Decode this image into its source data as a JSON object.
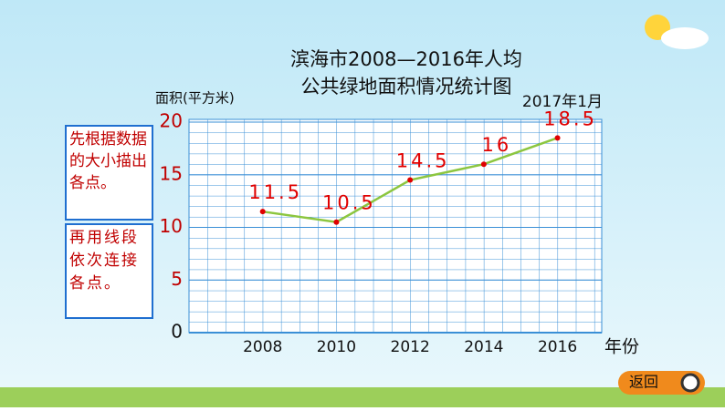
{
  "chart_data": {
    "type": "line",
    "title": [
      "滨海市2008—2016年人均",
      "公共绿地面积情况统计图"
    ],
    "date_note": "2017年1月",
    "y_label": "面积(平方米)",
    "x_label": "年份",
    "x": [
      2008,
      2010,
      2012,
      2014,
      2016
    ],
    "series": [
      {
        "color": "#8cc63f",
        "values": [
          11.5,
          10.5,
          14.5,
          16,
          18.5
        ]
      }
    ],
    "xlim": [
      2006,
      2017.2
    ],
    "xticks": [
      2008,
      2010,
      2012,
      2014,
      2016
    ],
    "ylim": [
      0,
      20
    ],
    "yticks": [
      0,
      5,
      10,
      15,
      20
    ],
    "grid": true
  },
  "notes": [
    "先根据数据的大小描出各点。",
    "再用线段依次连接各点。"
  ],
  "button": "返回"
}
